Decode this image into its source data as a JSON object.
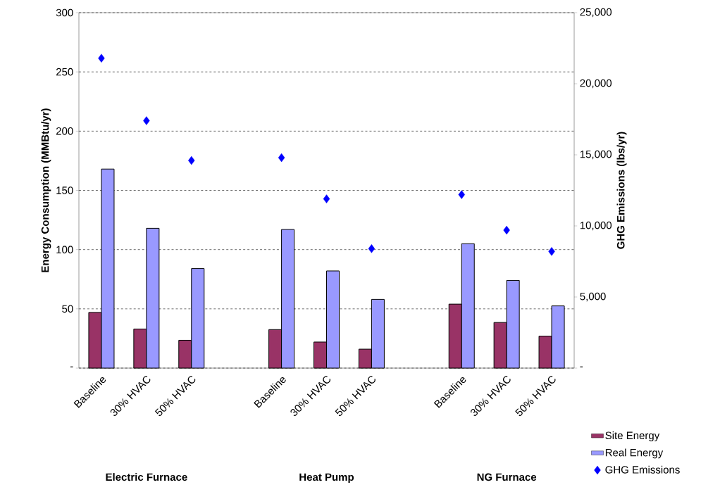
{
  "chart_data": {
    "type": "bar",
    "categories": [
      "Baseline",
      "30% HVAC",
      "50% HVAC",
      null,
      "Baseline",
      "30% HVAC",
      "50% HVAC",
      null,
      "Baseline",
      "30% HVAC",
      "50% HVAC"
    ],
    "series": [
      {
        "name": "Site Energy",
        "color": "#993366",
        "values": [
          47,
          33,
          23.5,
          null,
          32.5,
          22,
          16,
          null,
          54,
          38.5,
          27
        ]
      },
      {
        "name": "Real Energy",
        "color": "#9999ff",
        "values": [
          168,
          118,
          84,
          null,
          117,
          82,
          58,
          null,
          105,
          74,
          52.5
        ]
      },
      {
        "name": "GHG Emissions",
        "type": "scatter",
        "axis": "y2",
        "marker": "diamond",
        "color": "#0000ff",
        "values": [
          21800,
          17400,
          14600,
          null,
          14800,
          11900,
          8400,
          null,
          12200,
          9700,
          8200
        ]
      }
    ],
    "ylabel": "Energy Consumption (MMBtu/yr)",
    "y2label": "GHG Emissions (lbs/yr)",
    "ylim": [
      0,
      300
    ],
    "yticks": [
      {
        "value": 0,
        "label": "-"
      },
      50,
      100,
      150,
      200,
      250,
      300
    ],
    "y2lim": [
      0,
      25000
    ],
    "y2ticks": [
      {
        "value": 0,
        "label": "-"
      },
      {
        "value": 5000,
        "label": "5,000"
      },
      {
        "value": 10000,
        "label": "10,000"
      },
      {
        "value": 15000,
        "label": "15,000"
      },
      {
        "value": 20000,
        "label": "20,000"
      },
      {
        "value": 25000,
        "label": "25,000"
      }
    ],
    "grid": "y",
    "legend": "bottom right",
    "annotations": [
      "Electric Furnace",
      "Heat Pump",
      "NG Furnace"
    ]
  }
}
